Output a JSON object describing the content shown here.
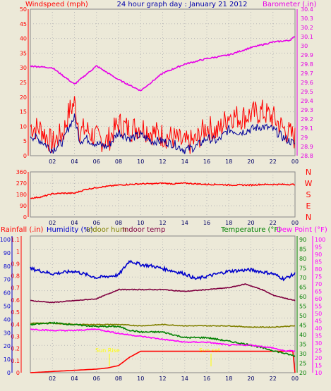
{
  "header": {
    "wind_title": "Windspeed (mph)",
    "graph_title": "24 hour graph day : January 21 2012",
    "baro_title": "Barometer (.in)"
  },
  "bottom_header": {
    "rain_title": "Rainfall (.in)",
    "humidity_title": "Humidity (%)",
    "indoor_hum_title": "Indoor hum",
    "indoor_temp_title": "Indoor temp",
    "temp_title": "Temperature (°F)",
    "dew_title": "Dew Point (°F)"
  },
  "annotations": {
    "sun_rise": "Sun Rise",
    "sun_set": "Sun set"
  },
  "colors": {
    "background": "#ece9d8",
    "grid": "#b8b8b8",
    "wind": "#ff0000",
    "gust_avg": "#000099",
    "baro": "#e600e6",
    "direction": "#ff0000",
    "rain": "#ff0000",
    "humidity": "#0000cc",
    "indoor_hum": "#808000",
    "indoor_temp": "#800040",
    "temperature": "#008000",
    "dew_point": "#ff00ff",
    "sun": "#ffff00",
    "title": "#0000aa"
  },
  "time_ticks": [
    "02",
    "04",
    "06",
    "08",
    "10",
    "12",
    "14",
    "16",
    "18",
    "20",
    "22",
    "00"
  ],
  "chart_data": [
    {
      "type": "line",
      "x_ticks": [
        "02",
        "04",
        "06",
        "08",
        "10",
        "12",
        "14",
        "16",
        "18",
        "20",
        "22",
        "00"
      ],
      "y_left_ticks": [
        "0",
        "5",
        "10",
        "15",
        "20",
        "25",
        "30",
        "35",
        "40",
        "45",
        "50"
      ],
      "y_left_range": [
        0,
        50
      ],
      "y_right_ticks": [
        "28.8",
        "28.9",
        "29",
        "29.1",
        "29.2",
        "29.3",
        "29.4",
        "29.5",
        "29.6",
        "29.7",
        "29.8",
        "29.9",
        "30",
        "30.1",
        "30.2",
        "30.3",
        "30.4"
      ],
      "y_right_range": [
        28.8,
        30.4
      ],
      "series": [
        {
          "axis": "left",
          "hours": [
            0,
            1,
            2,
            3,
            3.5,
            4,
            4.5,
            5,
            6,
            7,
            8,
            9,
            10,
            11,
            12,
            13,
            14,
            15,
            16,
            17,
            18,
            19,
            20,
            21,
            22,
            23,
            24
          ],
          "values": [
            10,
            9,
            4,
            8,
            15,
            18,
            8,
            9,
            6,
            5,
            11,
            9,
            10,
            8,
            7,
            6,
            4,
            5,
            10,
            8,
            14,
            13,
            14,
            15,
            13,
            9,
            6
          ]
        },
        {
          "axis": "left",
          "hours": [
            0,
            1,
            2,
            3,
            3.5,
            4,
            4.5,
            5,
            6,
            7,
            8,
            9,
            10,
            11,
            12,
            13,
            14,
            15,
            16,
            17,
            18,
            19,
            20,
            21,
            22,
            23,
            24
          ],
          "values": [
            7,
            5,
            2,
            5,
            10,
            13,
            5,
            6,
            4,
            3,
            8,
            6,
            7,
            5,
            5,
            4,
            2,
            3,
            6,
            5,
            9,
            8,
            9,
            10,
            9,
            6,
            4
          ]
        },
        {
          "name": "Barometer (.in)",
          "axis": "right",
          "hours": [
            0,
            2,
            4,
            6,
            8,
            10,
            12,
            14,
            16,
            18,
            20,
            22,
            23.5,
            24
          ],
          "values": [
            29.78,
            29.76,
            29.58,
            29.78,
            29.63,
            29.51,
            29.7,
            29.8,
            29.86,
            29.9,
            29.98,
            30.04,
            30.06,
            30.1
          ]
        }
      ]
    },
    {
      "type": "line",
      "x_ticks": [
        "02",
        "04",
        "06",
        "08",
        "10",
        "12",
        "14",
        "16",
        "18",
        "20",
        "22",
        "00"
      ],
      "y_left_ticks": [
        "0",
        "90",
        "180",
        "270",
        "360"
      ],
      "y_left_range": [
        0,
        360
      ],
      "y_right_ticks": [
        "N",
        "W",
        "S",
        "E",
        "N"
      ],
      "series": [
        {
          "hours": [
            0,
            1,
            2,
            3,
            4,
            5,
            6,
            7,
            8,
            9,
            10,
            11,
            12,
            13,
            14,
            15,
            16,
            17,
            18,
            19,
            20,
            21,
            22,
            23,
            24
          ],
          "values": [
            150,
            160,
            185,
            190,
            190,
            220,
            235,
            245,
            255,
            260,
            265,
            265,
            270,
            265,
            270,
            265,
            260,
            260,
            255,
            255,
            255,
            260,
            260,
            260,
            260
          ]
        }
      ]
    },
    {
      "type": "line",
      "x_ticks": [
        "02",
        "04",
        "06",
        "08",
        "10",
        "12",
        "14",
        "16",
        "18",
        "20",
        "22",
        "00"
      ],
      "y_ticks_rain": [
        "0",
        "0.1",
        "0.2",
        "0.3",
        "0.4",
        "0.5",
        "0.6",
        "0.7",
        "0.8",
        "0.9",
        "1",
        "1.1"
      ],
      "y_ticks_humidity": [
        "0",
        "10",
        "20",
        "30",
        "40",
        "50",
        "60",
        "70",
        "80",
        "90",
        "100"
      ],
      "y_ticks_temp": [
        "20",
        "25",
        "30",
        "35",
        "40",
        "45",
        "50",
        "55",
        "60",
        "65",
        "70",
        "75",
        "80",
        "85",
        "90"
      ],
      "y_ticks_dew": [
        "10",
        "15",
        "20",
        "25",
        "30",
        "35",
        "40",
        "45",
        "50",
        "55",
        "60",
        "65",
        "70",
        "75",
        "80",
        "85",
        "90",
        "95",
        "100"
      ],
      "series": [
        {
          "name": "Rainfall (.in)",
          "axis": "rain",
          "hours": [
            0,
            2,
            4,
            6,
            7,
            7.5,
            8,
            9,
            10,
            12,
            14,
            16,
            18,
            20,
            22,
            23.9,
            24
          ],
          "values": [
            0,
            0.01,
            0.02,
            0.03,
            0.04,
            0.05,
            0.06,
            0.13,
            0.18,
            0.18,
            0.18,
            0.18,
            0.18,
            0.18,
            0.18,
            0.18,
            0
          ]
        },
        {
          "name": "Humidity (%)",
          "axis": "humidity",
          "hours": [
            0,
            2,
            4,
            6,
            8,
            9,
            10,
            11,
            12,
            14,
            15,
            16,
            18,
            20,
            22,
            23,
            24
          ],
          "values": [
            80,
            76,
            78,
            73,
            75,
            86,
            83,
            82,
            80,
            76,
            72,
            74,
            78,
            79,
            76,
            72,
            76
          ]
        },
        {
          "name": "Indoor hum",
          "axis": "humidity",
          "hours": [
            0,
            2,
            4,
            6,
            8,
            10,
            12,
            14,
            16,
            18,
            20,
            22,
            24
          ],
          "values": [
            38,
            38,
            37,
            37,
            37,
            36,
            37,
            36,
            36,
            36,
            35,
            35,
            36
          ]
        },
        {
          "name": "Indoor temp",
          "axis": "temp",
          "hours": [
            0,
            2,
            4,
            6,
            8,
            10,
            12,
            14,
            16,
            18,
            19.5,
            21,
            22,
            24
          ],
          "values": [
            57,
            56,
            57,
            58,
            63,
            63,
            63,
            62,
            63,
            64,
            66,
            63,
            60,
            57
          ]
        },
        {
          "name": "Temperature (°F)",
          "axis": "temp",
          "hours": [
            0,
            2,
            4,
            6,
            8,
            9,
            10,
            12,
            14,
            16,
            18,
            20,
            22,
            24
          ],
          "values": [
            44,
            45,
            44,
            43,
            43,
            41,
            40,
            40,
            37,
            37,
            35,
            33,
            30,
            27
          ]
        },
        {
          "name": "Dew Point (°F)",
          "axis": "dew",
          "hours": [
            0,
            2,
            4,
            6,
            8,
            10,
            12,
            14,
            16,
            18,
            20,
            22,
            23,
            24
          ],
          "values": [
            38,
            37,
            37,
            38,
            35,
            33,
            31,
            29,
            29,
            27,
            27,
            25,
            23,
            23
          ]
        }
      ]
    }
  ]
}
